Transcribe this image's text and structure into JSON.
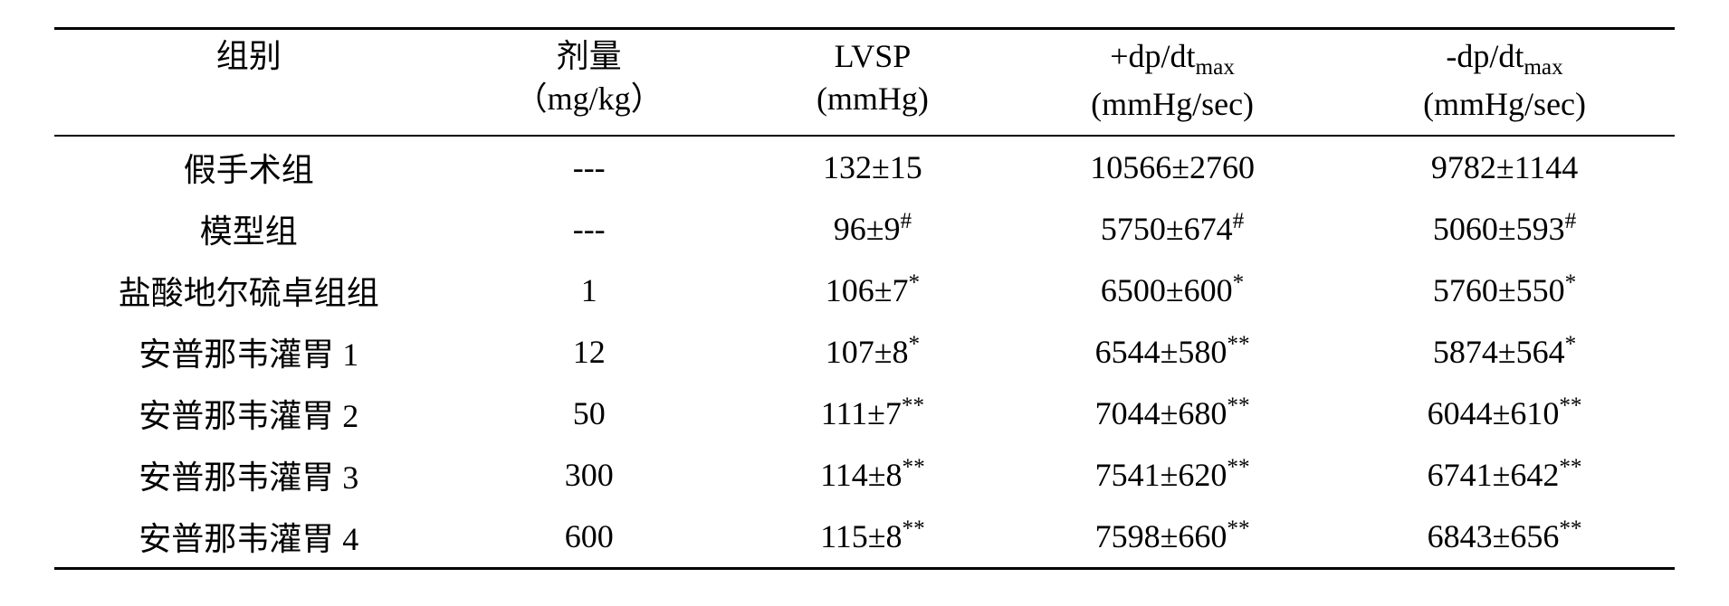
{
  "header": {
    "group": {
      "l1": "组别",
      "l2": ""
    },
    "dose": {
      "l1": "剂量",
      "l2": "（mg/kg）"
    },
    "lvsp": {
      "l1": "LVSP",
      "l2": "(mmHg)"
    },
    "dpdt_pos": {
      "l1_pre": "+dp/dt",
      "l1_sub": "max",
      "l2": "(mmHg/sec)"
    },
    "dpdt_neg": {
      "l1_pre": "-dp/dt",
      "l1_sub": "max",
      "l2": "(mmHg/sec)"
    }
  },
  "rows": [
    {
      "group": "假手术组",
      "dose": "---",
      "lvsp": "132±15",
      "lvsp_sup": "",
      "p1": "10566±2760",
      "p1_sup": "",
      "p2": "9782±1144",
      "p2_sup": ""
    },
    {
      "group": "模型组",
      "dose": "---",
      "lvsp": "96±9",
      "lvsp_sup": "#",
      "p1": "5750±674",
      "p1_sup": "#",
      "p2": "5060±593",
      "p2_sup": "#"
    },
    {
      "group": "盐酸地尔硫卓组组",
      "dose": "1",
      "lvsp": "106±7",
      "lvsp_sup": "*",
      "p1": "6500±600",
      "p1_sup": "*",
      "p2": "5760±550",
      "p2_sup": "*"
    },
    {
      "group": "安普那韦灌胃 1",
      "dose": "12",
      "lvsp": "107±8",
      "lvsp_sup": "*",
      "p1": "6544±580",
      "p1_sup": "**",
      "p2": "5874±564",
      "p2_sup": "*"
    },
    {
      "group": "安普那韦灌胃 2",
      "dose": "50",
      "lvsp": "111±7",
      "lvsp_sup": "**",
      "p1": "7044±680",
      "p1_sup": "**",
      "p2": "6044±610",
      "p2_sup": "**"
    },
    {
      "group": "安普那韦灌胃 3",
      "dose": "300",
      "lvsp": "114±8",
      "lvsp_sup": "**",
      "p1": "7541±620",
      "p1_sup": "**",
      "p2": "6741±642",
      "p2_sup": "**"
    },
    {
      "group": "安普那韦灌胃 4",
      "dose": "600",
      "lvsp": "115±8",
      "lvsp_sup": "**",
      "p1": "7598±660",
      "p1_sup": "**",
      "p2": "6843±656",
      "p2_sup": "**"
    }
  ]
}
